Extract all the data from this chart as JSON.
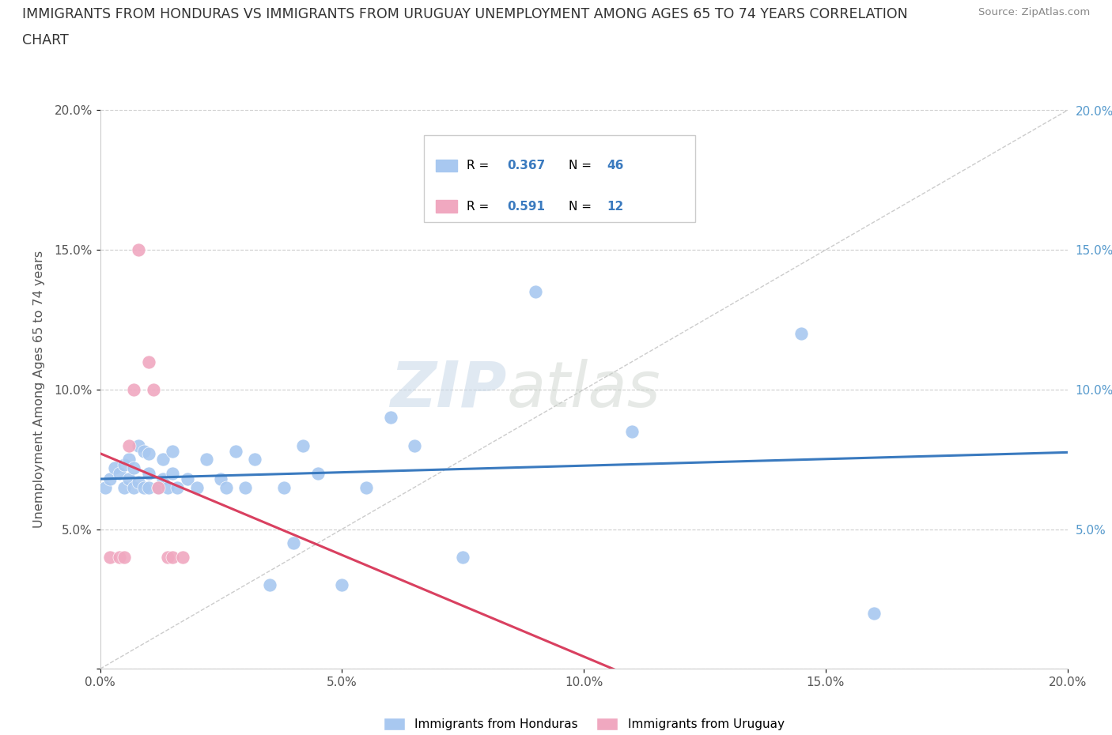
{
  "title_line1": "IMMIGRANTS FROM HONDURAS VS IMMIGRANTS FROM URUGUAY UNEMPLOYMENT AMONG AGES 65 TO 74 YEARS CORRELATION",
  "title_line2": "CHART",
  "source": "Source: ZipAtlas.com",
  "ylabel": "Unemployment Among Ages 65 to 74 years",
  "xlim": [
    0.0,
    0.2
  ],
  "ylim": [
    0.0,
    0.2
  ],
  "xticks": [
    0.0,
    0.05,
    0.1,
    0.15,
    0.2
  ],
  "yticks": [
    0.0,
    0.05,
    0.1,
    0.15,
    0.2
  ],
  "xtick_labels": [
    "0.0%",
    "5.0%",
    "10.0%",
    "15.0%",
    "20.0%"
  ],
  "ytick_labels": [
    "",
    "5.0%",
    "10.0%",
    "15.0%",
    "20.0%"
  ],
  "legend_labels": [
    "Immigrants from Honduras",
    "Immigrants from Uruguay"
  ],
  "honduras_color": "#a8c8f0",
  "uruguay_color": "#f0a8c0",
  "honduras_line_color": "#3a7abf",
  "uruguay_line_color": "#d94060",
  "diagonal_color": "#cccccc",
  "watermark_zip": "ZIP",
  "watermark_atlas": "atlas",
  "R_honduras": "0.367",
  "N_honduras": "46",
  "R_uruguay": "0.591",
  "N_uruguay": "12",
  "honduras_x": [
    0.001,
    0.002,
    0.003,
    0.004,
    0.005,
    0.005,
    0.006,
    0.006,
    0.007,
    0.007,
    0.008,
    0.008,
    0.009,
    0.009,
    0.01,
    0.01,
    0.01,
    0.012,
    0.013,
    0.013,
    0.014,
    0.015,
    0.015,
    0.016,
    0.018,
    0.02,
    0.022,
    0.025,
    0.026,
    0.028,
    0.03,
    0.032,
    0.035,
    0.038,
    0.04,
    0.042,
    0.045,
    0.05,
    0.055,
    0.06,
    0.065,
    0.075,
    0.09,
    0.11,
    0.145,
    0.16
  ],
  "honduras_y": [
    0.065,
    0.068,
    0.072,
    0.07,
    0.065,
    0.073,
    0.068,
    0.075,
    0.065,
    0.072,
    0.067,
    0.08,
    0.065,
    0.078,
    0.065,
    0.07,
    0.077,
    0.065,
    0.068,
    0.075,
    0.065,
    0.07,
    0.078,
    0.065,
    0.068,
    0.065,
    0.075,
    0.068,
    0.065,
    0.078,
    0.065,
    0.075,
    0.03,
    0.065,
    0.045,
    0.08,
    0.07,
    0.03,
    0.065,
    0.09,
    0.08,
    0.04,
    0.135,
    0.085,
    0.12,
    0.02
  ],
  "uruguay_x": [
    0.002,
    0.004,
    0.005,
    0.006,
    0.007,
    0.008,
    0.01,
    0.011,
    0.012,
    0.014,
    0.015,
    0.017
  ],
  "uruguay_y": [
    0.04,
    0.04,
    0.04,
    0.08,
    0.1,
    0.15,
    0.11,
    0.1,
    0.065,
    0.04,
    0.04,
    0.04
  ]
}
